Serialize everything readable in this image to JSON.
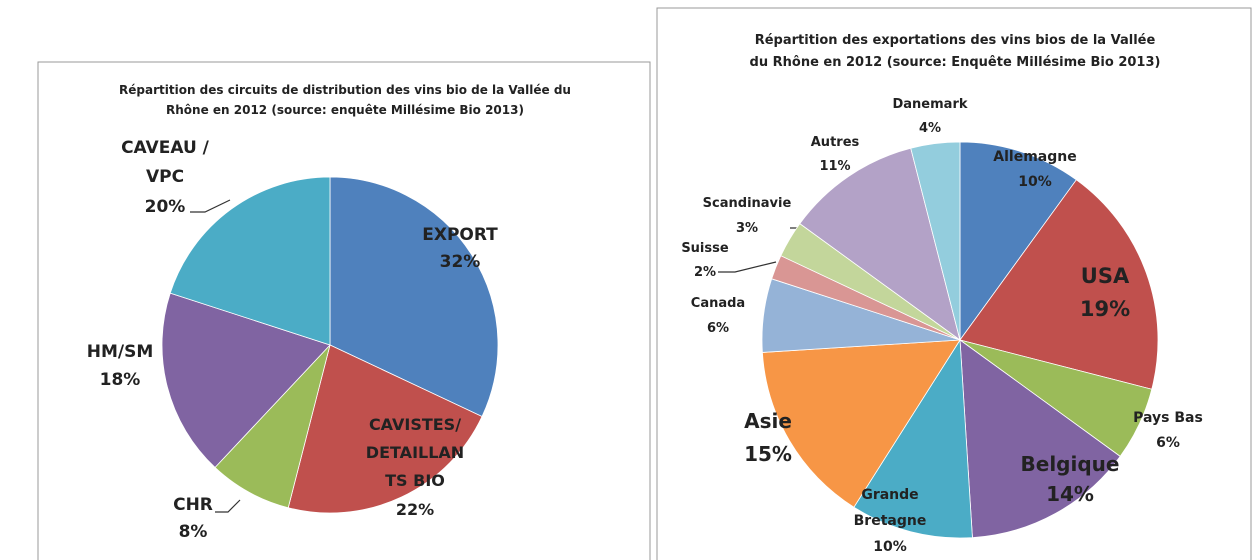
{
  "chart_data": [
    {
      "type": "pie",
      "title": "Répartition des circuits de distribution des vins bio de la Vallée du\nRhône en 2012 (source: enquête Millésime Bio 2013)",
      "categories": [
        "EXPORT",
        "CAVISTES/\nDETAILLAN\nTS BIO",
        "CHR",
        "HM/SM",
        "CAVEAU /\nVPC"
      ],
      "values": [
        32,
        22,
        8,
        18,
        20
      ],
      "value_labels": [
        "32%",
        "22%",
        "8%",
        "18%",
        "20%"
      ],
      "colors": [
        "#4f81bd",
        "#c0504d",
        "#9bbb59",
        "#8064a2",
        "#4bacc6"
      ]
    },
    {
      "type": "pie",
      "title": "Répartition des exportations des vins bios de la Vallée\ndu Rhône en 2012 (source: Enquête Millésime Bio 2013)",
      "categories": [
        "Allemagne",
        "USA",
        "Pays Bas",
        "Belgique",
        "Grande\nBretagne",
        "Asie",
        "Canada",
        "Suisse",
        "Scandinavie",
        "Autres",
        "Danemark"
      ],
      "values": [
        10,
        19,
        6,
        14,
        10,
        15,
        6,
        2,
        3,
        11,
        4
      ],
      "value_labels": [
        "10%",
        "19%",
        "6%",
        "14%",
        "10%",
        "15%",
        "6%",
        "2%",
        "3%",
        "11%",
        "4%"
      ],
      "colors": [
        "#4f81bd",
        "#c0504d",
        "#9bbb59",
        "#8064a2",
        "#4bacc6",
        "#f79646",
        "#95b3d7",
        "#d99694",
        "#c3d69b",
        "#b3a2c7",
        "#93cddd"
      ]
    }
  ]
}
